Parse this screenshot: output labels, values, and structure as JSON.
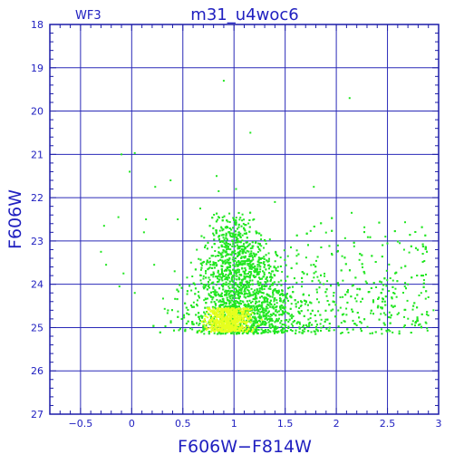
{
  "chart_data": {
    "type": "scatter",
    "title": "m31_u4woc6",
    "corner_label": "WF3",
    "xlabel": "F606W−F814W",
    "ylabel": "F606W",
    "xlim": [
      -0.8,
      3.0
    ],
    "ylim": [
      27,
      18
    ],
    "y_inverted": true,
    "grid": true,
    "x_ticks": [
      -0.5,
      0,
      0.5,
      1,
      1.5,
      2,
      2.5,
      3
    ],
    "x_tick_labels": [
      "−0.5",
      "0",
      "0.5",
      "1",
      "1.5",
      "2",
      "2.5",
      "3"
    ],
    "y_ticks": [
      18,
      19,
      20,
      21,
      22,
      23,
      24,
      25,
      26,
      27
    ],
    "y_tick_labels": [
      "18",
      "19",
      "20",
      "21",
      "22",
      "23",
      "24",
      "25",
      "26",
      "27"
    ],
    "colors": {
      "axis": "#1c1ca8",
      "grid": "#2a2ab8",
      "text": "#2020c0",
      "points_main": "#22e622",
      "points_dense": "#e6ff1e"
    },
    "series": [
      {
        "points": [
          [
            0.9,
            19.3
          ],
          [
            2.13,
            19.7
          ],
          [
            1.16,
            20.5
          ],
          [
            -0.1,
            21.0
          ],
          [
            0.03,
            20.97
          ],
          [
            -0.02,
            21.4
          ],
          [
            0.83,
            21.5
          ],
          [
            0.23,
            21.75
          ],
          [
            0.38,
            21.6
          ],
          [
            1.02,
            21.8
          ],
          [
            0.85,
            21.85
          ],
          [
            1.78,
            21.75
          ],
          [
            2.15,
            22.35
          ],
          [
            1.4,
            22.1
          ],
          [
            0.67,
            22.25
          ],
          [
            -0.13,
            22.45
          ],
          [
            0.14,
            22.5
          ],
          [
            0.45,
            22.5
          ],
          [
            -0.27,
            22.65
          ],
          [
            0.12,
            22.8
          ],
          [
            2.48,
            22.9
          ],
          [
            2.62,
            23.05
          ],
          [
            -0.3,
            23.25
          ],
          [
            -0.25,
            23.55
          ],
          [
            0.42,
            23.7
          ],
          [
            0.22,
            23.55
          ],
          [
            0.58,
            23.5
          ],
          [
            -0.08,
            23.75
          ],
          [
            -0.12,
            24.05
          ],
          [
            0.03,
            24.2
          ],
          [
            2.9,
            24.3
          ],
          [
            2.95,
            24.6
          ],
          [
            2.75,
            24.85
          ],
          [
            2.83,
            24.2
          ],
          [
            2.45,
            24.4
          ],
          [
            2.52,
            24.65
          ],
          [
            2.88,
            24.9
          ],
          [
            2.2,
            24.95
          ],
          [
            3.0,
            24.75
          ],
          [
            2.67,
            24.05
          ]
        ]
      }
    ]
  }
}
